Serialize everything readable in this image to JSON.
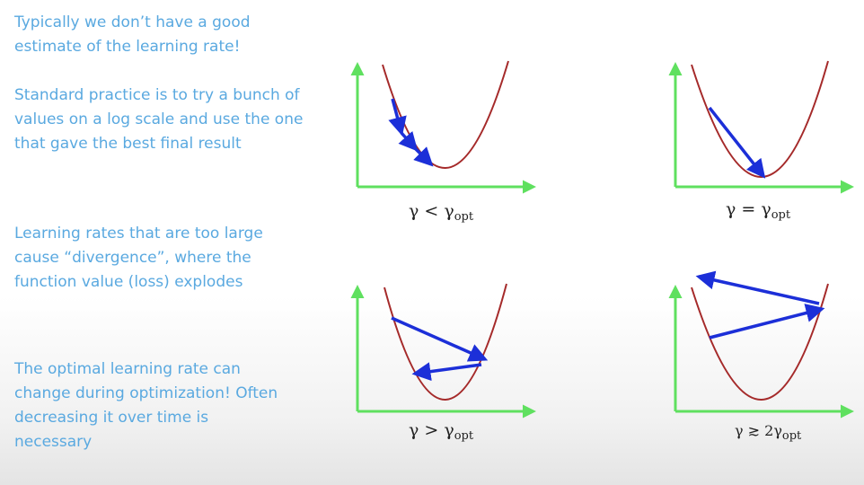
{
  "text": {
    "p1": "Typically we don’t have a good estimate of the learning rate!",
    "p2": "Standard practice is to try a bunch of values on a log scale and use the one that gave the best final result",
    "p3": "Learning rates that are too large cause “divergence”, where the function value (loss) explodes",
    "p4": "The optimal learning rate can change during optimization! Often decreasing it over time is necessary"
  },
  "captions": [
    {
      "lhs": "γ",
      "op": "<",
      "coef": "",
      "sym": "γ",
      "sub": "opt"
    },
    {
      "lhs": "γ",
      "op": "=",
      "coef": "",
      "sym": "γ",
      "sub": "opt"
    },
    {
      "lhs": "γ",
      "op": ">",
      "coef": "",
      "sym": "γ",
      "sub": "opt"
    },
    {
      "lhs": "γ",
      "op": "≳",
      "coef": "2",
      "sym": "γ",
      "sub": "opt"
    }
  ],
  "colors": {
    "text": "#5aa9e0",
    "axes": "#5fe05f",
    "curve": "#a52a2a",
    "arrows": "#1c2fd8",
    "caption": "#222222"
  }
}
